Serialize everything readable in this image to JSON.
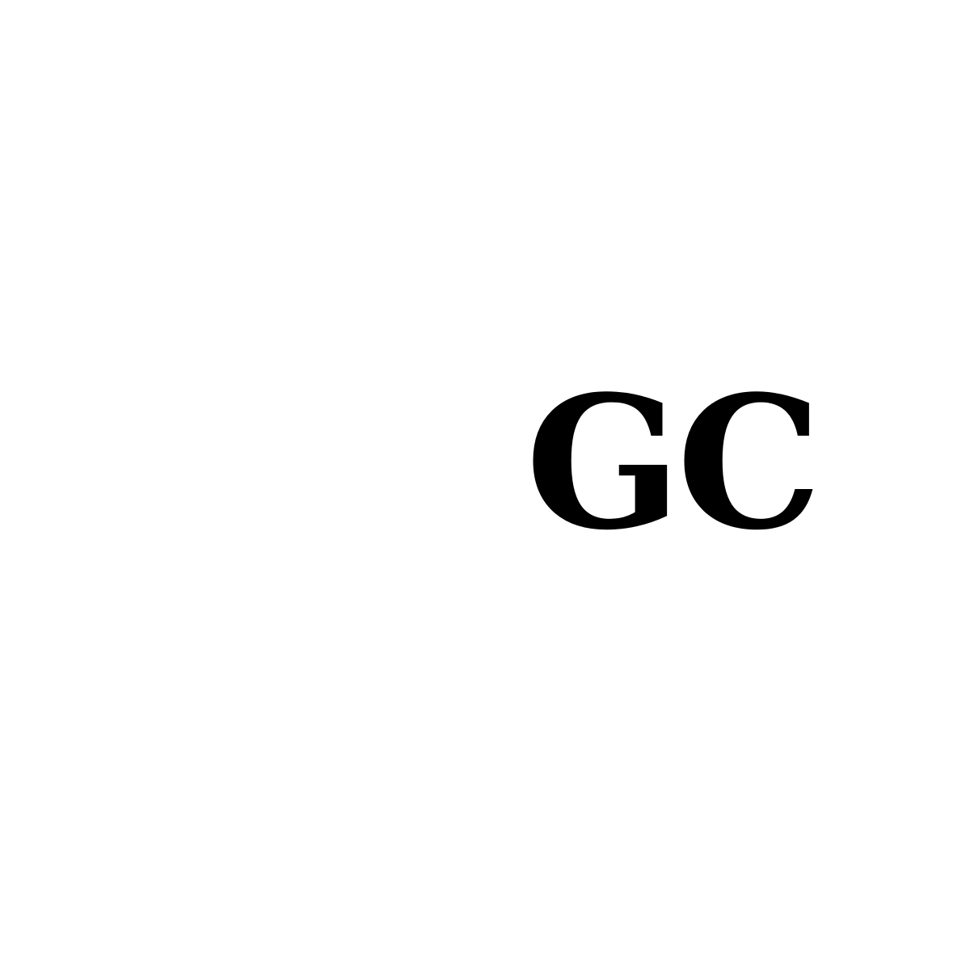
{
  "monogram": {
    "text": "GC",
    "color": "#000000"
  },
  "background_color": "#ffffff"
}
